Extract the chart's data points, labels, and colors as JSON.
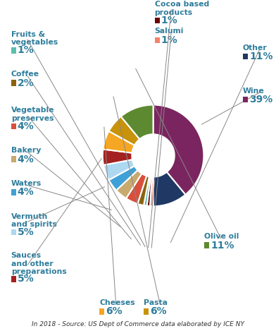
{
  "caption": "In 2018 - Source: US Dept of Commerce data elaborated by ICE NY",
  "slices": [
    {
      "label": "Wine",
      "pct": 39,
      "color": "#7B2560"
    },
    {
      "label": "Other",
      "pct": 11,
      "color": "#1F3864"
    },
    {
      "label": "Salumi",
      "pct": 1,
      "color": "#F4836A"
    },
    {
      "label": "Cocoa based\nproducts",
      "pct": 1,
      "color": "#6B0000"
    },
    {
      "label": "Fruits &\nvegetables",
      "pct": 1,
      "color": "#5BBFAD"
    },
    {
      "label": "Coffee",
      "pct": 2,
      "color": "#8B6310"
    },
    {
      "label": "Vegetable\npreserves",
      "pct": 4,
      "color": "#D94F3D"
    },
    {
      "label": "Bakery",
      "pct": 4,
      "color": "#C8A96E"
    },
    {
      "label": "Waters",
      "pct": 4,
      "color": "#3FA0D6"
    },
    {
      "label": "Vermuth\nand spirits",
      "pct": 5,
      "color": "#ADD8F0"
    },
    {
      "label": "Sauces\nand other\npreparations",
      "pct": 5,
      "color": "#A52020"
    },
    {
      "label": "Cheeses",
      "pct": 6,
      "color": "#F5A623"
    },
    {
      "label": "Pasta",
      "pct": 6,
      "color": "#C8920A"
    },
    {
      "label": "Olive oil",
      "pct": 11,
      "color": "#5D8A30"
    }
  ],
  "label_color": "#2E7D9C",
  "background": "#FFFFFF",
  "wedge_linewidth": 1.5,
  "wedge_linecolor": "#FFFFFF",
  "label_fontsize": 7.8,
  "pct_fontsize": 10.0
}
